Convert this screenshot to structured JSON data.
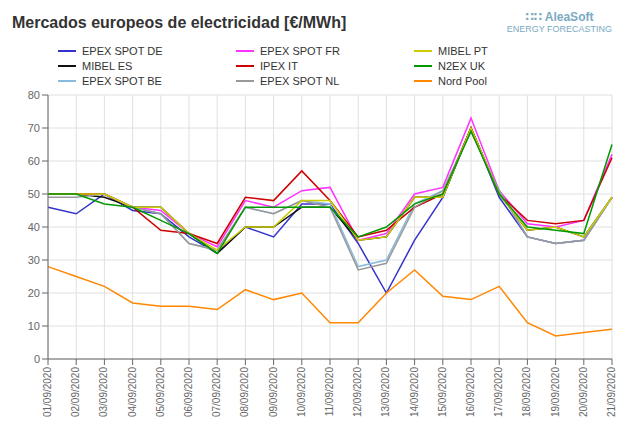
{
  "chart_data": {
    "type": "line",
    "title": "Mercados europeos de electricidad [€/MWh]",
    "categories": [
      "01/09/2020",
      "02/09/2020",
      "03/09/2020",
      "04/09/2020",
      "05/09/2020",
      "06/09/2020",
      "07/09/2020",
      "08/09/2020",
      "09/09/2020",
      "10/09/2020",
      "11/09/2020",
      "12/09/2020",
      "13/09/2020",
      "14/09/2020",
      "15/09/2020",
      "16/09/2020",
      "17/09/2020",
      "18/09/2020",
      "19/09/2020",
      "20/09/2020",
      "21/09/2020"
    ],
    "series": [
      {
        "name": "EPEX SPOT DE",
        "color": "#3333cc",
        "values": [
          46,
          44,
          50,
          45,
          44,
          37,
          32,
          40,
          37,
          47,
          47,
          35,
          20,
          36,
          49,
          70,
          49,
          37,
          35,
          36,
          49
        ]
      },
      {
        "name": "MIBEL ES",
        "color": "#111111",
        "values": [
          50,
          50,
          49,
          46,
          46,
          38,
          32,
          40,
          40,
          46,
          46,
          36,
          37,
          49,
          49,
          70,
          50,
          39,
          40,
          37,
          49
        ]
      },
      {
        "name": "EPEX SPOT BE",
        "color": "#88bbdd",
        "values": [
          50,
          50,
          50,
          46,
          44,
          35,
          33,
          46,
          44,
          48,
          47,
          28,
          30,
          47,
          51,
          69,
          51,
          37,
          35,
          36,
          49
        ]
      },
      {
        "name": "EPEX SPOT FR",
        "color": "#ff33ff",
        "values": [
          50,
          50,
          50,
          46,
          45,
          38,
          34,
          48,
          46,
          51,
          52,
          36,
          38,
          50,
          52,
          73,
          51,
          41,
          40,
          42,
          62
        ]
      },
      {
        "name": "IPEX IT",
        "color": "#cc0000",
        "values": [
          50,
          50,
          50,
          46,
          39,
          38,
          35,
          49,
          48,
          57,
          48,
          37,
          39,
          46,
          50,
          70,
          50,
          42,
          41,
          42,
          61
        ]
      },
      {
        "name": "EPEX SPOT NL",
        "color": "#999999",
        "values": [
          49,
          49,
          50,
          46,
          44,
          35,
          33,
          46,
          44,
          48,
          46,
          27,
          29,
          46,
          51,
          69,
          51,
          37,
          35,
          36,
          49
        ]
      },
      {
        "name": "MIBEL PT",
        "color": "#cccc00",
        "values": [
          50,
          50,
          50,
          46,
          46,
          38,
          33,
          40,
          40,
          48,
          48,
          36,
          37,
          49,
          49,
          70,
          50,
          39,
          40,
          37,
          49
        ]
      },
      {
        "name": "N2EX UK",
        "color": "#009900",
        "values": [
          50,
          50,
          47,
          46,
          42,
          38,
          32,
          46,
          46,
          46,
          46,
          37,
          40,
          47,
          50,
          69,
          50,
          40,
          39,
          38,
          65
        ]
      },
      {
        "name": "Nord Pool",
        "color": "#ff8800",
        "values": [
          28,
          25,
          22,
          17,
          16,
          16,
          15,
          21,
          18,
          20,
          11,
          11,
          20,
          27,
          19,
          18,
          22,
          11,
          7,
          8,
          9
        ]
      }
    ],
    "ylim": [
      0,
      80
    ],
    "yticks": [
      0,
      10,
      20,
      30,
      40,
      50,
      60,
      70,
      80
    ],
    "grid": true,
    "legend": "top",
    "annotations": [
      "∷∷ AleaSoft",
      "ENERGY FORECASTING"
    ]
  }
}
